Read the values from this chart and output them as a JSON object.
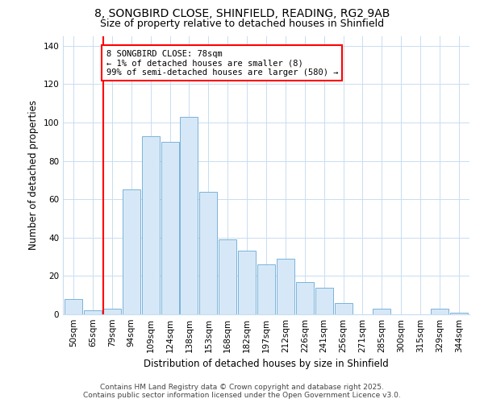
{
  "title1": "8, SONGBIRD CLOSE, SHINFIELD, READING, RG2 9AB",
  "title2": "Size of property relative to detached houses in Shinfield",
  "xlabel": "Distribution of detached houses by size in Shinfield",
  "ylabel": "Number of detached properties",
  "bins": [
    "50sqm",
    "65sqm",
    "79sqm",
    "94sqm",
    "109sqm",
    "124sqm",
    "138sqm",
    "153sqm",
    "168sqm",
    "182sqm",
    "197sqm",
    "212sqm",
    "226sqm",
    "241sqm",
    "256sqm",
    "271sqm",
    "285sqm",
    "300sqm",
    "315sqm",
    "329sqm",
    "344sqm"
  ],
  "values": [
    8,
    2,
    3,
    65,
    93,
    90,
    103,
    64,
    39,
    33,
    26,
    29,
    17,
    14,
    6,
    0,
    3,
    0,
    0,
    3,
    1
  ],
  "bar_color": "#d6e8f7",
  "bar_edge_color": "#7ab3d9",
  "red_line_index": 2,
  "annotation_lines": [
    "8 SONGBIRD CLOSE: 78sqm",
    "← 1% of detached houses are smaller (8)",
    "99% of semi-detached houses are larger (580) →"
  ],
  "ylim": [
    0,
    145
  ],
  "yticks": [
    0,
    20,
    40,
    60,
    80,
    100,
    120,
    140
  ],
  "footer1": "Contains HM Land Registry data © Crown copyright and database right 2025.",
  "footer2": "Contains public sector information licensed under the Open Government Licence v3.0.",
  "bg_color": "#ffffff",
  "plot_bg_color": "#ffffff",
  "title1_fontsize": 10,
  "title2_fontsize": 9,
  "annotation_fontsize": 7.5,
  "axis_fontsize": 7.5,
  "footer_fontsize": 6.5
}
